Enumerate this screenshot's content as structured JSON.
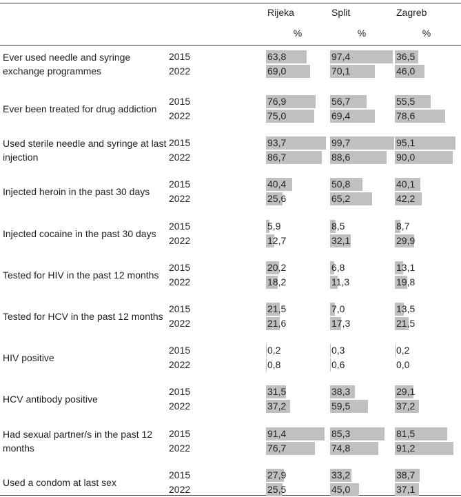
{
  "header": {
    "columns": [
      "Rijeka",
      "Split",
      "Zagreb"
    ],
    "units": [
      "%",
      "%",
      "%"
    ]
  },
  "table": {
    "rows": [
      {
        "label": "Ever used needle and syringe exchange programmes",
        "years": [
          "2015",
          "2022"
        ],
        "values": [
          [
            {
              "value": 63.8,
              "label": "63,8"
            },
            {
              "value": 97.4,
              "label": "97,4"
            },
            {
              "value": 36.5,
              "label": "36,5"
            }
          ],
          [
            {
              "value": 69.0,
              "label": "69,0"
            },
            {
              "value": 70.1,
              "label": "70,1"
            },
            {
              "value": 46.0,
              "label": "46,0"
            }
          ]
        ]
      },
      {
        "label": "Ever been treated for drug addiction",
        "years": [
          "2015",
          "2022"
        ],
        "values": [
          [
            {
              "value": 76.9,
              "label": "76,9"
            },
            {
              "value": 56.7,
              "label": "56,7"
            },
            {
              "value": 55.5,
              "label": "55,5"
            }
          ],
          [
            {
              "value": 75.0,
              "label": "75,0"
            },
            {
              "value": 69.4,
              "label": "69,4"
            },
            {
              "value": 78.6,
              "label": "78,6"
            }
          ]
        ]
      },
      {
        "label": "Used sterile needle and syringe at last injection",
        "years": [
          "2015",
          "2022"
        ],
        "values": [
          [
            {
              "value": 93.7,
              "label": "93,7"
            },
            {
              "value": 99.7,
              "label": "99,7"
            },
            {
              "value": 95.1,
              "label": "95,1"
            }
          ],
          [
            {
              "value": 86.7,
              "label": "86,7"
            },
            {
              "value": 88.6,
              "label": "88,6"
            },
            {
              "value": 90.0,
              "label": "90,0"
            }
          ]
        ]
      },
      {
        "label": "Injected heroin in the past 30 days",
        "years": [
          "2015",
          "2022"
        ],
        "values": [
          [
            {
              "value": 40.4,
              "label": "40,4"
            },
            {
              "value": 50.8,
              "label": "50,8"
            },
            {
              "value": 40.1,
              "label": "40,1"
            }
          ],
          [
            {
              "value": 25.6,
              "label": "25,6"
            },
            {
              "value": 65.2,
              "label": "65,2"
            },
            {
              "value": 42.2,
              "label": "42,2"
            }
          ]
        ]
      },
      {
        "label": "Injected cocaine in the past 30 days",
        "years": [
          "2015",
          "2022"
        ],
        "values": [
          [
            {
              "value": 5.9,
              "label": "5,9"
            },
            {
              "value": 8.5,
              "label": "8,5"
            },
            {
              "value": 8.7,
              "label": "8,7"
            }
          ],
          [
            {
              "value": 12.7,
              "label": "12,7"
            },
            {
              "value": 32.1,
              "label": "32,1"
            },
            {
              "value": 29.9,
              "label": "29,9"
            }
          ]
        ]
      },
      {
        "label": "Tested for HIV in the past 12 months",
        "years": [
          "2015",
          "2022"
        ],
        "values": [
          [
            {
              "value": 20.2,
              "label": "20,2"
            },
            {
              "value": 6.8,
              "label": "6,8"
            },
            {
              "value": 13.1,
              "label": "13,1"
            }
          ],
          [
            {
              "value": 18.2,
              "label": "18,2"
            },
            {
              "value": 11.3,
              "label": "11,3"
            },
            {
              "value": 19.8,
              "label": "19,8"
            }
          ]
        ]
      },
      {
        "label": "Tested for HCV in the past 12 months",
        "years": [
          "2015",
          "2022"
        ],
        "values": [
          [
            {
              "value": 21.5,
              "label": "21,5"
            },
            {
              "value": 7.0,
              "label": "7,0"
            },
            {
              "value": 13.5,
              "label": "13,5"
            }
          ],
          [
            {
              "value": 21.6,
              "label": "21,6"
            },
            {
              "value": 17.3,
              "label": "17,3"
            },
            {
              "value": 21.5,
              "label": "21,5"
            }
          ]
        ]
      },
      {
        "label": "HIV positive",
        "years": [
          "2015",
          "2022"
        ],
        "values": [
          [
            {
              "value": 0.2,
              "label": "0,2"
            },
            {
              "value": 0.3,
              "label": "0,3"
            },
            {
              "value": 0.2,
              "label": "0,2"
            }
          ],
          [
            {
              "value": 0.8,
              "label": "0,8"
            },
            {
              "value": 0.6,
              "label": "0,6"
            },
            {
              "value": 0.0,
              "label": "0,0"
            }
          ]
        ]
      },
      {
        "label": "HCV antibody positive",
        "years": [
          "2015",
          "2022"
        ],
        "values": [
          [
            {
              "value": 31.5,
              "label": "31,5"
            },
            {
              "value": 38.3,
              "label": "38,3"
            },
            {
              "value": 29.1,
              "label": "29,1"
            }
          ],
          [
            {
              "value": 37.2,
              "label": "37,2"
            },
            {
              "value": 59.5,
              "label": "59,5"
            },
            {
              "value": 37.2,
              "label": "37,2"
            }
          ]
        ]
      },
      {
        "label": "Had sexual partner/s in the past 12 months",
        "years": [
          "2015",
          "2022"
        ],
        "values": [
          [
            {
              "value": 91.4,
              "label": "91,4"
            },
            {
              "value": 85.3,
              "label": "85,3"
            },
            {
              "value": 81.5,
              "label": "81,5"
            }
          ],
          [
            {
              "value": 76.7,
              "label": "76,7"
            },
            {
              "value": 74.8,
              "label": "74,8"
            },
            {
              "value": 91.2,
              "label": "91,2"
            }
          ]
        ]
      },
      {
        "label": "Used a condom at last sex",
        "years": [
          "2015",
          "2022"
        ],
        "values": [
          [
            {
              "value": 27.9,
              "label": "27,9"
            },
            {
              "value": 33.2,
              "label": "33,2"
            },
            {
              "value": 38.7,
              "label": "38,7"
            }
          ],
          [
            {
              "value": 25.5,
              "label": "25,5"
            },
            {
              "value": 45.0,
              "label": "45,0"
            },
            {
              "value": 37.1,
              "label": "37,1"
            }
          ]
        ]
      }
    ]
  }
}
